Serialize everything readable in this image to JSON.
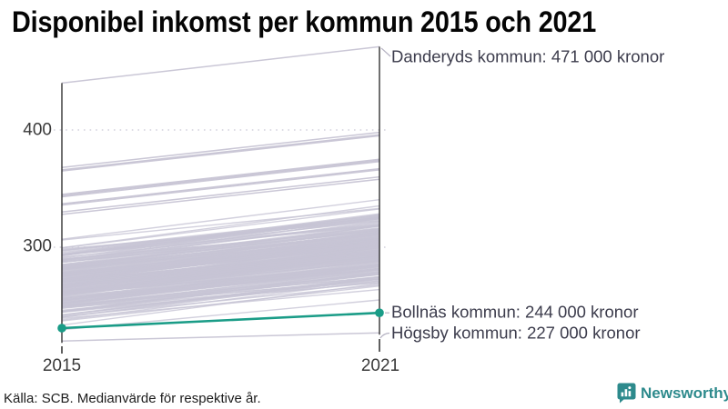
{
  "title": "Disponibel inkomst per kommun 2015 och 2021",
  "source": "Källa: SCB. Medianvärde för respektive år.",
  "brand": {
    "name": "Newsworthy",
    "color": "#2d8a8c"
  },
  "colors": {
    "highlight": "#1a9c87",
    "background_line": "#c7c4d4",
    "axis": "#1b1b1b",
    "grid_dots": "#d4d2de",
    "connector": "#b5b2c2",
    "annotation_text": "#3c3c4c"
  },
  "chart_data": {
    "type": "line",
    "subtype": "slope-chart",
    "title": "Disponibel inkomst per kommun 2015 och 2021",
    "x_labels": [
      "2015",
      "2021"
    ],
    "x": [
      2015,
      2021
    ],
    "yticks": [
      400,
      300
    ],
    "ytick_labels": [
      "400",
      "300"
    ],
    "ylim": [
      215,
      480
    ],
    "grid": "dotted-horizontal",
    "unit": "tusen kronor",
    "series": [
      {
        "name": "Danderyds kommun",
        "role": "annotated-max",
        "values": [
          440,
          471
        ],
        "label": "Danderyds kommun: 471 000 kronor"
      },
      {
        "name": "Bollnäs kommun",
        "role": "highlight",
        "values": [
          231,
          244
        ],
        "label": "Bollnäs kommun: 244 000 kronor"
      },
      {
        "name": "Högsby kommun",
        "role": "annotated-min",
        "values": [
          220,
          227
        ],
        "label": "Högsby kommun: 227 000 kronor"
      }
    ],
    "background": {
      "description": "övriga kommuner (oläsbara enskilda värden, tät bunt av grå linjer)",
      "count": 230,
      "v2015_range": [
        222,
        315
      ],
      "delta_range": [
        24,
        36
      ],
      "upper_outliers_2015": [
        368,
        366,
        365,
        345,
        344,
        343,
        337,
        336,
        330,
        328
      ],
      "upper_outlier_delta": 30,
      "seed": 42
    }
  }
}
